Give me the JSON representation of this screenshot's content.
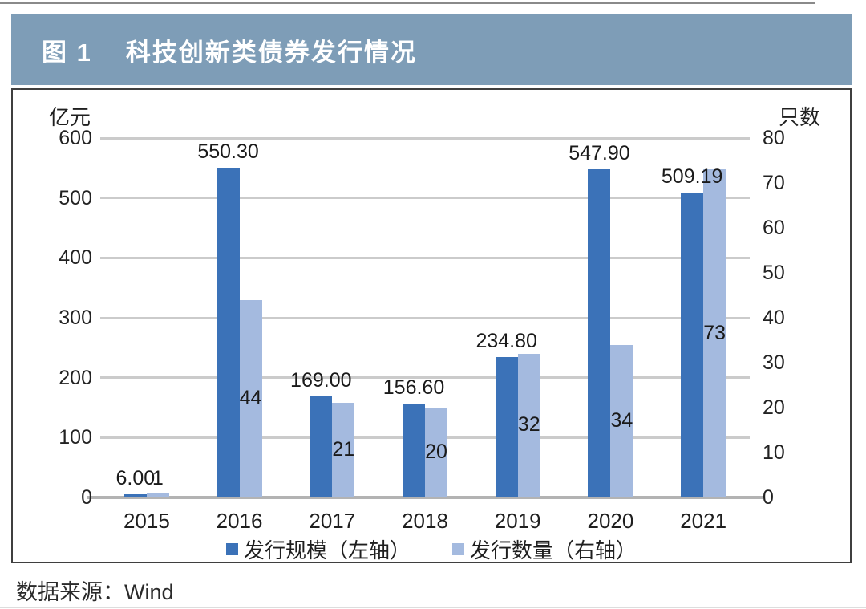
{
  "header": {
    "figure_label": "图 1",
    "title": "科技创新类债券发行情况",
    "bg_color": "#7E9DB7",
    "text_color": "#FFFFFF"
  },
  "source_note": "数据来源：Wind",
  "colors": {
    "bar_left_series": "#3B72B8",
    "bar_right_series": "#A4BADF",
    "gridline": "#CBCBCB",
    "baseline": "#B3B3B3",
    "panel_border": "#3F3F3F"
  },
  "chart_data": {
    "type": "bar",
    "title": "科技创新类债券发行情况",
    "categories": [
      "2015",
      "2016",
      "2017",
      "2018",
      "2019",
      "2020",
      "2021"
    ],
    "series": [
      {
        "name": "发行规模（左轴）",
        "axis": "left",
        "color": "#3B72B8",
        "values": [
          6.0,
          550.3,
          169.0,
          156.6,
          234.8,
          547.9,
          509.19
        ],
        "labels": [
          "6.00",
          "550.30",
          "169.00",
          "156.60",
          "234.80",
          "547.90",
          "509.19"
        ]
      },
      {
        "name": "发行数量（右轴）",
        "axis": "right",
        "color": "#A4BADF",
        "values": [
          1,
          44,
          21,
          20,
          32,
          34,
          73
        ],
        "labels": [
          "1",
          "44",
          "21",
          "20",
          "32",
          "34",
          "73"
        ]
      }
    ],
    "left_axis": {
      "title": "亿元",
      "min": 0,
      "max": 600,
      "step": 100,
      "ticks": [
        600,
        500,
        400,
        300,
        200,
        100,
        0
      ]
    },
    "right_axis": {
      "title": "只数",
      "min": 0,
      "max": 80,
      "step": 10,
      "ticks": [
        80,
        70,
        60,
        50,
        40,
        30,
        20,
        10,
        0
      ]
    },
    "grid": "horizontal",
    "legend_position": "bottom"
  }
}
